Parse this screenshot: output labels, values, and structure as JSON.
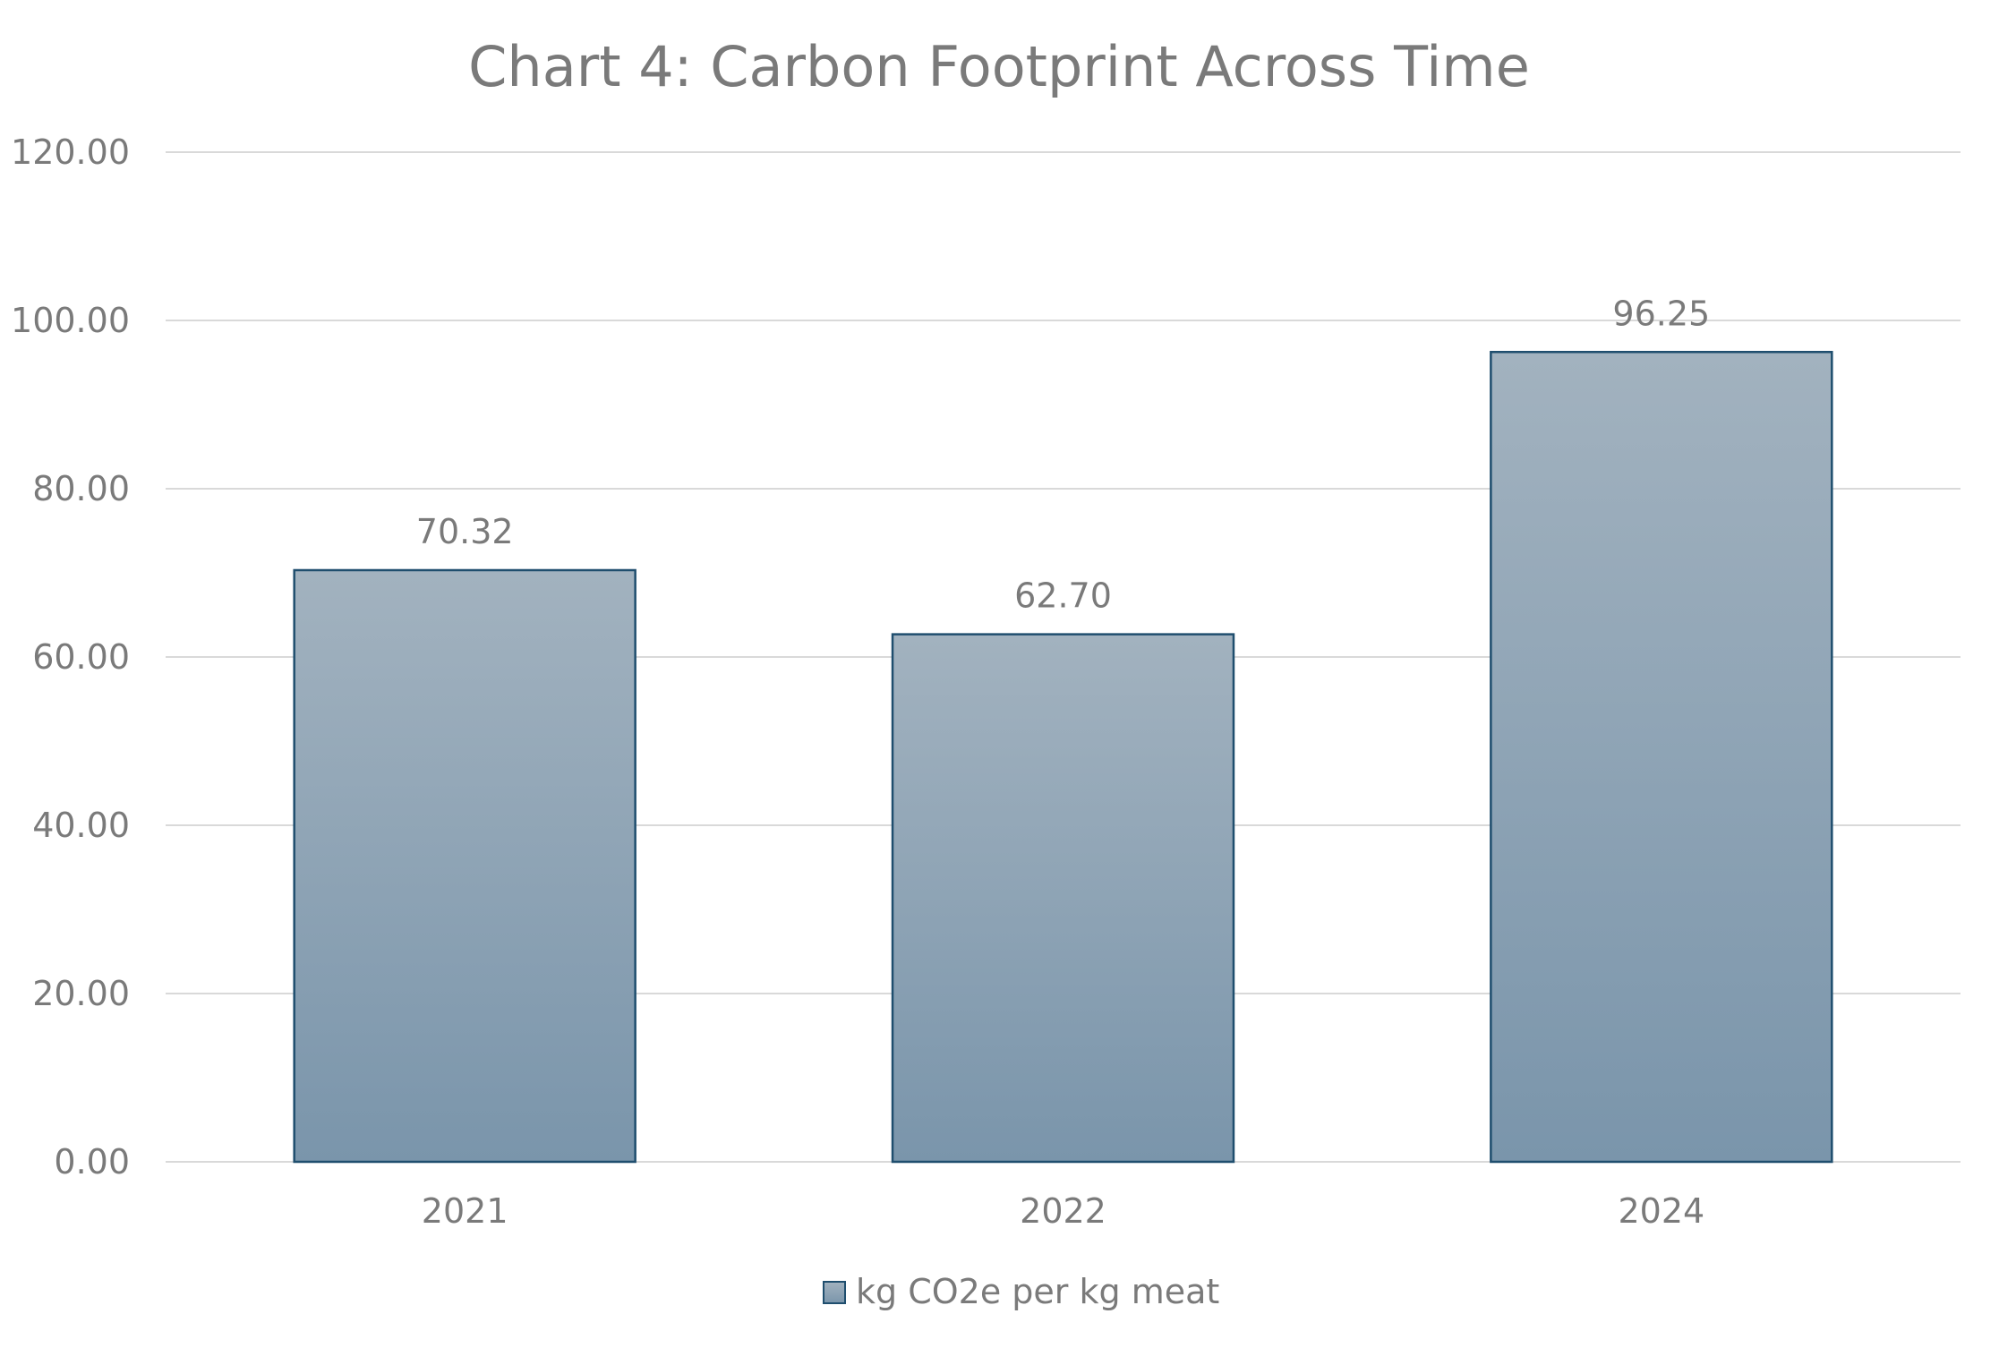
{
  "chart_data": {
    "type": "bar",
    "title": "Chart 4: Carbon Footprint Across Time",
    "categories": [
      "2021",
      "2022",
      "2024"
    ],
    "series": [
      {
        "name": "kg CO2e per kg meat",
        "values": [
          70.32,
          62.7,
          96.25
        ]
      }
    ],
    "data_labels": [
      "70.32",
      "62.70",
      "96.25"
    ],
    "y_ticks": [
      "0.00",
      "20.00",
      "40.00",
      "60.00",
      "80.00",
      "100.00",
      "120.00"
    ],
    "ylim": [
      0,
      120
    ],
    "y_step": 20,
    "xlabel": "",
    "ylabel": "",
    "grid": true,
    "legend_position": "bottom",
    "colors": {
      "bar_top": "#a2b2bf",
      "bar_bottom": "#7a95ab",
      "bar_border": "#1f4e6e",
      "grid": "#d9d9d9",
      "text": "#7a7a7a"
    }
  }
}
